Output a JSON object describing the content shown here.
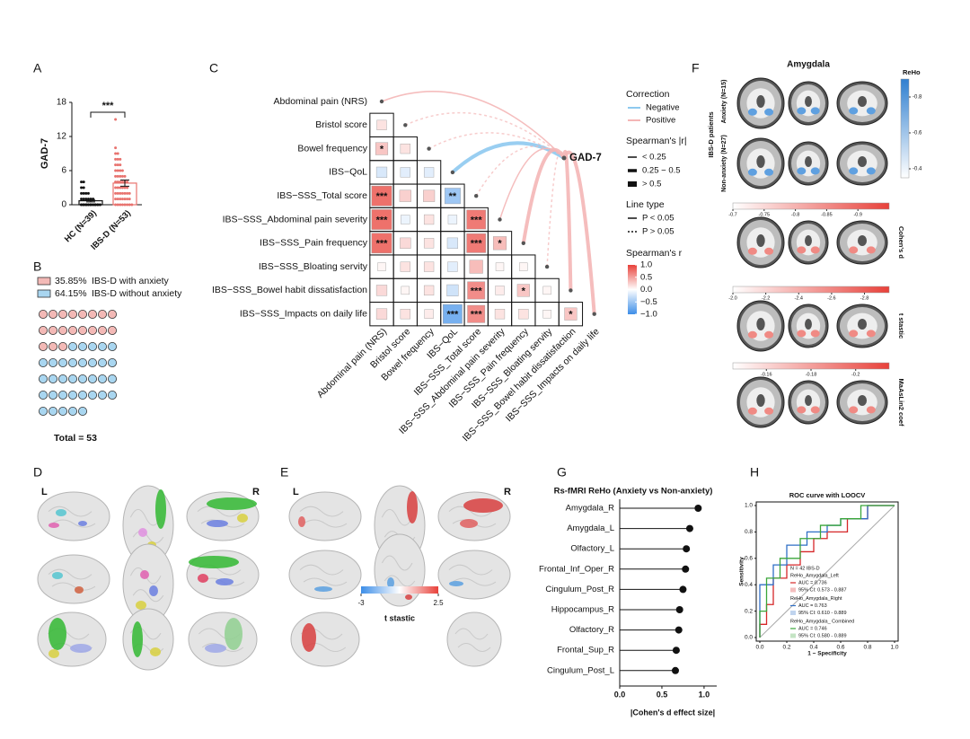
{
  "panel_labels": [
    "A",
    "B",
    "C",
    "D",
    "E",
    "F",
    "G",
    "H"
  ],
  "chart_data": [
    {
      "type": "bar",
      "ylabel": "GAD-7",
      "categories": [
        "HC (N=39)",
        "IBS-D (N=53)"
      ],
      "values": [
        0.7,
        3.8
      ],
      "errors": [
        0.2,
        0.55
      ],
      "colors": [
        "#111111",
        "#e8736f"
      ],
      "points": [
        [
          0,
          0,
          0,
          0,
          0,
          0,
          0,
          0,
          0,
          0,
          0,
          0,
          0,
          0,
          0,
          0,
          0,
          0,
          0,
          0,
          0,
          0,
          0,
          0,
          0,
          1,
          1,
          1,
          1,
          1,
          1,
          2,
          2,
          2,
          2,
          3,
          3,
          4,
          4
        ],
        [
          0,
          0,
          0,
          0,
          0,
          0,
          0,
          0,
          1,
          1,
          1,
          1,
          1,
          1,
          1,
          2,
          2,
          2,
          2,
          2,
          2,
          2,
          3,
          3,
          3,
          3,
          3,
          3,
          4,
          4,
          4,
          4,
          4,
          4,
          5,
          5,
          5,
          5,
          5,
          6,
          6,
          6,
          6,
          7,
          7,
          7,
          8,
          8,
          8,
          9,
          9,
          10,
          15
        ]
      ],
      "significance": "***",
      "ylim": [
        0,
        18
      ],
      "yticks": [
        0,
        6,
        12,
        18
      ]
    },
    {
      "type": "waffle",
      "series": [
        {
          "name": "IBS-D with anxiety",
          "value": 35.85,
          "value_label": "35.85%",
          "count": 19,
          "color": "#f3b9b6"
        },
        {
          "name": "IBS-D without anxiety",
          "value": 64.15,
          "value_label": "64.15%",
          "count": 34,
          "color": "#a9d6f0"
        }
      ],
      "total_label": "Total = 53"
    },
    {
      "type": "heatmap",
      "variables": [
        "Abdominal pain (NRS)",
        "Bristol score",
        "Bowel frequency",
        "IBS−QoL",
        "IBS−SSS_Total score",
        "IBS−SSS_Abdominal pain severity",
        "IBS−SSS_Pain frequency",
        "IBS−SSS_Bloating servity",
        "IBS−SSS_Bowel habit dissatisfaction",
        "IBS−SSS_Impacts on daily life"
      ],
      "matrix": [
        [
          0.15
        ],
        [
          0.3,
          0.15
        ],
        [
          -0.2,
          -0.15,
          -0.15
        ],
        [
          0.75,
          0.25,
          0.25,
          -0.5
        ],
        [
          0.75,
          -0.1,
          0.15,
          -0.1,
          0.7
        ],
        [
          0.75,
          0.2,
          0.15,
          -0.2,
          0.7,
          0.35
        ],
        [
          0.05,
          0.15,
          0.15,
          -0.15,
          0.35,
          0.05,
          0.05
        ],
        [
          0.2,
          0.05,
          0.15,
          -0.25,
          0.6,
          0.1,
          0.3,
          0.05
        ],
        [
          0.2,
          0.15,
          0.1,
          -0.7,
          0.6,
          0.15,
          0.15,
          0.05,
          0.3
        ]
      ],
      "stars": [
        [
          null
        ],
        [
          "*",
          null
        ],
        [
          null,
          null,
          null
        ],
        [
          "***",
          null,
          null,
          "**"
        ],
        [
          "***",
          null,
          null,
          null,
          "***"
        ],
        [
          "***",
          null,
          null,
          null,
          "***",
          "*"
        ],
        [
          null,
          null,
          null,
          null,
          null,
          null,
          null
        ],
        [
          null,
          null,
          null,
          null,
          "***",
          null,
          "*",
          null
        ],
        [
          null,
          null,
          null,
          "***",
          "***",
          null,
          null,
          null,
          "*"
        ]
      ],
      "target": "GAD-7",
      "gad_r": [
        0.2,
        0.05,
        0.05,
        -0.35,
        0.15,
        0.2,
        0.25,
        0.1,
        0.25,
        0.3
      ],
      "gad_significant": [
        true,
        false,
        false,
        true,
        false,
        true,
        true,
        false,
        true,
        true
      ],
      "correction_title": "Correction",
      "correction_labels": [
        "Negative",
        "Positive"
      ],
      "correction_colors": [
        "#8ec9ef",
        "#f4b6b6"
      ],
      "abs_r_title": "Spearman's |r|",
      "abs_r_labels": [
        "< 0.25",
        "0.25 − 0.5",
        "> 0.5"
      ],
      "line_type_title": "Line type",
      "line_type_labels": [
        "P < 0.05",
        "P > 0.05"
      ],
      "colorbar_title": "Spearman's r",
      "colorbar_colors": [
        "#3d8ee8",
        "#ffffff",
        "#e8413a"
      ],
      "colorbar_lim": [
        -1,
        1
      ],
      "colorbar_ticks": [
        {
          "value": 1,
          "label": "1.0"
        },
        {
          "value": 0.5,
          "label": "0.5"
        },
        {
          "value": 0,
          "label": "0.0"
        },
        {
          "value": -0.5,
          "label": "−0.5"
        },
        {
          "value": -1,
          "label": "−1.0"
        }
      ]
    },
    {
      "type": "lollipop",
      "title": "Rs-fMRI ReHo (Anxiety vs Non-anxiety)",
      "xlabel": "|Cohen's d effect size|",
      "categories": [
        "Amygdala_R",
        "Amygdala_L",
        "Olfactory_L",
        "Frontal_Inf_Oper_R",
        "Cingulum_Post_R",
        "Hippocampus_R",
        "Olfactory_R",
        "Frontal_Sup_R",
        "Cingulum_Post_L"
      ],
      "values": [
        0.93,
        0.83,
        0.79,
        0.78,
        0.75,
        0.71,
        0.7,
        0.67,
        0.66
      ],
      "category_colors": [
        "#d62728",
        "#d62728",
        "#222222",
        "#222222",
        "#222222",
        "#222222",
        "#222222",
        "#222222",
        "#222222"
      ],
      "xlim": [
        0,
        1.15
      ],
      "xticks": [
        {
          "value": 0,
          "label": "0.0"
        },
        {
          "value": 0.5,
          "label": "0.5"
        },
        {
          "value": 1,
          "label": "1.0"
        }
      ]
    },
    {
      "type": "roc",
      "title": "ROC curve with LOOCV",
      "xlabel": "1 − Specificity",
      "ylabel": "Sensitivity",
      "note": "N = 42 IBS-D",
      "xlim": [
        0,
        1
      ],
      "ylim": [
        0,
        1
      ],
      "xticks": [
        {
          "value": 0,
          "label": "0.0"
        },
        {
          "value": 0.2,
          "label": "0.2"
        },
        {
          "value": 0.4,
          "label": "0.4"
        },
        {
          "value": 0.6,
          "label": "0.6"
        },
        {
          "value": 0.8,
          "label": "0.8"
        },
        {
          "value": 1,
          "label": "1.0"
        }
      ],
      "yticks": [
        {
          "value": 0,
          "label": "0.0"
        },
        {
          "value": 0.2,
          "label": "0.2"
        },
        {
          "value": 0.4,
          "label": "0.4"
        },
        {
          "value": 0.6,
          "label": "0.6"
        },
        {
          "value": 0.8,
          "label": "0.8"
        },
        {
          "value": 1,
          "label": "1.0"
        }
      ],
      "series": [
        {
          "name": "ReHo_Amygdala_Left",
          "color": "#d62728",
          "auc_label": "AUC = 0.736",
          "ci_label": "95% CI: 0.573 - 0.887",
          "x": [
            0,
            0,
            0.05,
            0.05,
            0.1,
            0.1,
            0.2,
            0.2,
            0.3,
            0.3,
            0.4,
            0.4,
            0.5,
            0.5,
            0.65,
            0.65,
            0.8,
            0.8,
            1
          ],
          "values": [
            0,
            0.1,
            0.1,
            0.25,
            0.25,
            0.45,
            0.45,
            0.55,
            0.55,
            0.65,
            0.65,
            0.75,
            0.75,
            0.8,
            0.8,
            0.9,
            0.9,
            1,
            1
          ]
        },
        {
          "name": "ReHo_Amygdala_Right",
          "color": "#2f6fc6",
          "auc_label": "AUC = 0.763",
          "ci_label": "95% CI: 0.610 - 0.889",
          "x": [
            0,
            0,
            0.1,
            0.1,
            0.2,
            0.2,
            0.35,
            0.35,
            0.5,
            0.5,
            0.6,
            0.6,
            0.8,
            0.8,
            1
          ],
          "values": [
            0,
            0.4,
            0.4,
            0.55,
            0.55,
            0.7,
            0.7,
            0.8,
            0.8,
            0.85,
            0.85,
            0.9,
            0.9,
            1,
            1
          ]
        },
        {
          "name": "ReHo_Amygdala_ Combined",
          "color": "#3aa63a",
          "auc_label": "AUC = 0.746",
          "ci_label": "95% CI: 0.580 - 0.889",
          "x": [
            0,
            0,
            0.05,
            0.05,
            0.15,
            0.15,
            0.3,
            0.3,
            0.45,
            0.45,
            0.6,
            0.6,
            0.75,
            0.75,
            1
          ],
          "values": [
            0,
            0.2,
            0.2,
            0.45,
            0.45,
            0.6,
            0.6,
            0.75,
            0.75,
            0.85,
            0.85,
            0.9,
            0.9,
            1,
            1
          ]
        }
      ]
    }
  ],
  "brain_panels": {
    "D": {
      "left_label": "L",
      "right_label": "R"
    },
    "E": {
      "left_label": "L",
      "right_label": "R",
      "colorbar_title": "t stastic",
      "colorbar_lim": [
        -3,
        2.5
      ],
      "colorbar_ticks": [
        -3,
        2.5
      ]
    },
    "F": {
      "title": "Amygdala",
      "group_label": "IBS-D patients",
      "row_labels": [
        "Anxiety (N=15)",
        "Non-anxiety (N=27)"
      ],
      "reho": {
        "title": "ReHo",
        "lim": [
          -0.9,
          -0.35
        ],
        "ticks": [
          -0.8,
          -0.6,
          -0.4
        ]
      },
      "maps": [
        {
          "title": "Cohen's d",
          "lim": [
            -0.7,
            -0.95
          ],
          "ticks": [
            -0.7,
            -0.75,
            -0.8,
            -0.85,
            -0.9
          ]
        },
        {
          "title": "t stastic",
          "lim": [
            -2,
            -2.95
          ],
          "ticks": [
            {
              "value": -2,
              "label": "-2.0"
            },
            -2.2,
            -2.4,
            -2.6,
            -2.8
          ]
        },
        {
          "title": "MaAsLin2 coef",
          "lim": [
            -0.145,
            -0.215
          ],
          "ticks": [
            -0.16,
            -0.18,
            -0.2
          ]
        }
      ]
    }
  }
}
